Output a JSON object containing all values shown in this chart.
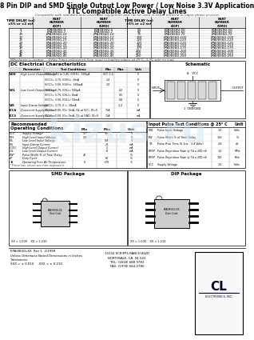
{
  "title_line1": "8 Pin DIP and SMD Single Output Low Power / Low Noise 3.3V Application",
  "title_line2": "TTL Compatible Active Delay Lines",
  "subtitle": "Compatible with standard auto-insertable equipment and can be used in either Infrared or vapor phase process.",
  "table1_rows": [
    [
      "5",
      "EPA3856G-5",
      "EPA3856G-5"
    ],
    [
      "7",
      "EPA3856G-7",
      "EPA3856G-7"
    ],
    [
      "10",
      "EPA3856G-10",
      "EPA3856G-10"
    ],
    [
      "12",
      "EPA3856G-12",
      "EPA3856G-12"
    ],
    [
      "15",
      "EPA3856G-15",
      "EPA3856G-15"
    ],
    [
      "20",
      "EPA3856G-20",
      "EPA3856G-20"
    ],
    [
      "25",
      "EPA3856G-25",
      "EPA3856G-25"
    ],
    [
      "30",
      "EPA3856G-30",
      "EPA3856G-30"
    ],
    [
      "35",
      "EPA3856G-35",
      "EPA3856G-35"
    ],
    [
      "40",
      "EPA3856G-40",
      "EPA3856G-40"
    ],
    [
      "45",
      "EPA3856G-45",
      "EPA3856G-45"
    ]
  ],
  "table2_rows": [
    [
      "50",
      "EPA3856G-50",
      "EPA3856G-50"
    ],
    [
      "60",
      "EPA3856G-60",
      "EPA3856G-60"
    ],
    [
      "75",
      "EPA3856G-75",
      "EPA3856G-75"
    ],
    [
      "100",
      "EPA3856G-100",
      "EPA3856G-100"
    ],
    [
      "120",
      "EPA3856G-120",
      "EPA3856G-120"
    ],
    [
      "125",
      "EPA3856G-125",
      "EPA3856G-125"
    ],
    [
      "150",
      "EPA3856G-150",
      "EPA3856G-150"
    ],
    [
      "175",
      "EPA3856G-175",
      "EPA3856G-175"
    ],
    [
      "200",
      "EPA3856G-200",
      "EPA3856G-200"
    ],
    [
      "225",
      "EPA3856G-225",
      "EPA3856G-225"
    ],
    [
      "250",
      "EPA3856G-250",
      "EPA3856G-250"
    ]
  ],
  "footnote": "†Whichever is greater.    Delay Times referenced from input to leading edges, at 25°C, 3.3V, with no load.",
  "dc_rows": [
    [
      "VOH",
      "High Level Output Voltage",
      "VCC= 3.7V to 3.4V, IO(H)= -500μA",
      "VCC 2.4",
      "",
      "V"
    ],
    [
      "",
      "",
      "V(CC)= 3.7V, IO(H)= -8mA",
      "2.4",
      "",
      "V"
    ],
    [
      "",
      "",
      "V(CC)= 3.0V, IO(H)= -500mA",
      "2.0",
      "",
      "V"
    ],
    [
      "VOL",
      "Low Level Output Voltage",
      "V(CC)= 3.7V, IO(L)= 500μA",
      "",
      "0.2",
      "V"
    ],
    [
      "",
      "",
      "V(CC)= 3.7V, IO(L)= 8mA",
      "",
      "0.5",
      "V"
    ],
    [
      "",
      "",
      "V(CC)= 3.0V, IO(L)= 50mA",
      "",
      "0.8",
      "V"
    ],
    [
      "VIK",
      "Input Clamp Voltage",
      "V(CC)= 3.7V, II = -18mA",
      "",
      "-1.2",
      "V"
    ],
    [
      "ICCA",
      "Quiescent Supply Current",
      "V(CC)= 3.0V, IO= 0mA, Clk at VCC, IO=0",
      "75A",
      "",
      "mA"
    ],
    [
      "ICCS",
      "Quiescent Supply Current",
      "V(CC)= 3.0V, IO= 0mA, Clk at GND, IO=0",
      "75A",
      "",
      "mA"
    ]
  ],
  "rec_rows": [
    [
      "VCC",
      "Supply Voltage",
      "3.7",
      "3.6",
      "V"
    ],
    [
      "VIH",
      "High Level Input Voltage",
      "2.0",
      "",
      "V"
    ],
    [
      "VIL",
      "Low Level Input Voltage",
      "",
      "0.8",
      "V"
    ],
    [
      "IIN",
      "Input Clamp Current",
      "",
      "20",
      "mA"
    ],
    [
      "ICOU",
      "High Level Output Current",
      "",
      "2",
      "mA"
    ],
    [
      "IOL",
      "Low Level Output Current",
      "",
      "8",
      "mA"
    ],
    [
      "PW*",
      "Pulse Width % of Total Delay",
      "40",
      "",
      "%"
    ],
    [
      "d*",
      "Duty Cycle",
      "",
      "60",
      "%"
    ],
    [
      "TA",
      "Operating Free Air Temperature",
      "0",
      "+70",
      "°C"
    ]
  ],
  "rec_footnote": "*These two values are inter-dependent.",
  "pulse_rows": [
    [
      "VIN",
      "Pulse Input Voltage",
      "3.3",
      "Volts"
    ],
    [
      "PW",
      "Pulse Width % of Total Delay",
      "150",
      "%"
    ],
    [
      "TR",
      "Pulse Rise Time (0.1ns - 3.4 Volts)",
      "2.0",
      "nS"
    ],
    [
      "FREP",
      "Pulse Repetition Rate @ Td x 200 nS",
      "1.0",
      "MHz"
    ],
    [
      "FREP",
      "Pulse Repetition Rate @ Td x 200 nS",
      "100",
      "KHz"
    ],
    [
      "VCC",
      "Supply Voltage",
      "3.3",
      "Volts"
    ]
  ],
  "smd_title": "SMD Package",
  "dip_title": "DIP Package",
  "footer_rev": "EPA3856G-XX  Rev 1  2/1998",
  "footer_note1": "Unless Otherwise Noted Dimensions in Inches",
  "footer_note2": "Tolerances:",
  "footer_note3": "XXX = ± 0.010    .XXX = ± 0.210",
  "footer_addr": "10150 SCRIPPS RANCH BLVD\nNORTHVALE, CA  94-543\nTEL: (1818) 688 9783\nFAX: (1978) 664-0780",
  "logo_top": "CL",
  "logo_bot": "ELECTRONICS, INC.",
  "watermark": "kizus.ru"
}
